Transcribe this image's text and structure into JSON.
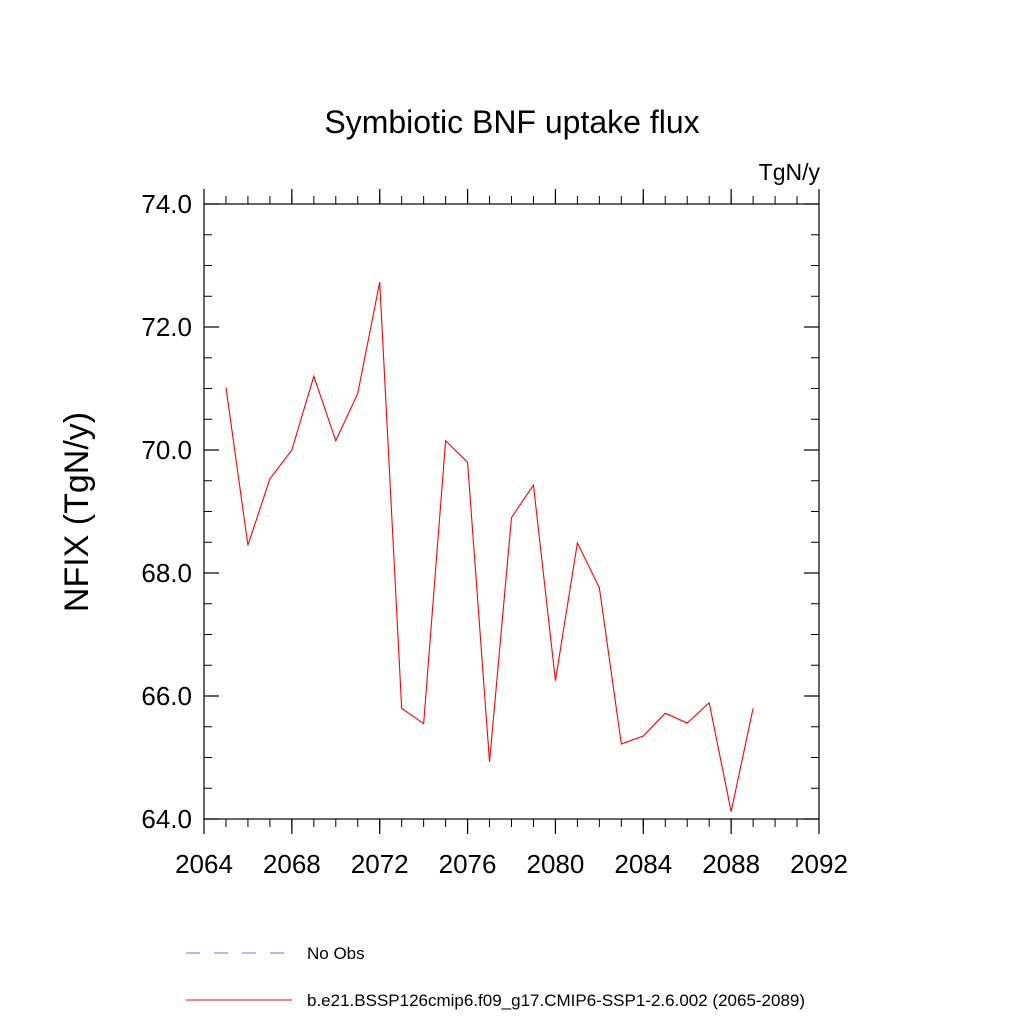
{
  "chart_data": {
    "type": "line",
    "title": "Symbiotic BNF uptake flux",
    "units": "TgN/y",
    "ylabel": "NFIX  (TgN/y)",
    "xlabel": "",
    "xlim": [
      2064,
      2092
    ],
    "ylim": [
      64.0,
      74.0
    ],
    "x_ticks": [
      2064,
      2068,
      2072,
      2076,
      2080,
      2084,
      2088,
      2092
    ],
    "x_tick_labels": [
      "2064",
      "2068",
      "2072",
      "2076",
      "2080",
      "2084",
      "2088",
      "2092"
    ],
    "y_ticks": [
      64.0,
      66.0,
      68.0,
      70.0,
      72.0,
      74.0
    ],
    "y_tick_labels": [
      "64.0",
      "66.0",
      "68.0",
      "70.0",
      "72.0",
      "74.0"
    ],
    "grid": false,
    "legend_position": "bottom",
    "series": [
      {
        "name": "b.e21.BSSP126cmip6.f09_g17.CMIP6-SSP1-2.6.002 (2065-2089)",
        "color": "#ff0000",
        "style": "solid",
        "x": [
          2065,
          2066,
          2067,
          2068,
          2069,
          2070,
          2071,
          2072,
          2073,
          2074,
          2075,
          2076,
          2077,
          2078,
          2079,
          2080,
          2081,
          2082,
          2083,
          2084,
          2085,
          2086,
          2087,
          2088,
          2089
        ],
        "values": [
          71.02,
          68.45,
          69.53,
          70.0,
          71.2,
          70.15,
          70.92,
          72.73,
          65.8,
          65.55,
          70.15,
          69.8,
          64.93,
          68.9,
          69.43,
          66.25,
          68.49,
          67.76,
          65.22,
          65.35,
          65.72,
          65.56,
          65.89,
          64.12,
          65.8
        ]
      }
    ],
    "legend": [
      {
        "label": "No Obs",
        "color": "#7b68ee",
        "style": "dashed"
      },
      {
        "label": "b.e21.BSSP126cmip6.f09_g17.CMIP6-SSP1-2.6.002 (2065-2089)",
        "color": "#ff0000",
        "style": "solid"
      }
    ]
  }
}
